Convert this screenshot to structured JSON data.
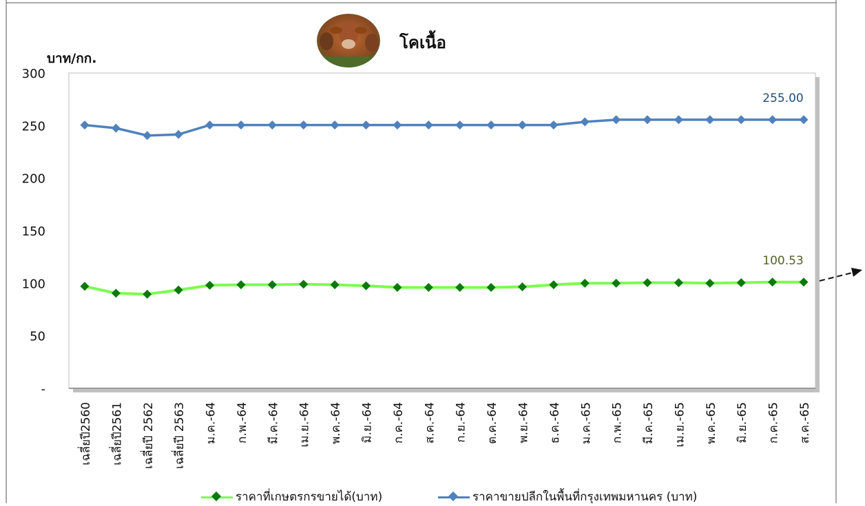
{
  "chart_data": {
    "type": "line",
    "title": "โคเนื้อ",
    "ylabel": "บาท/กก.",
    "ylim": [
      0,
      300
    ],
    "yticks": [
      "-",
      "50",
      "100",
      "150",
      "200",
      "250",
      "300"
    ],
    "categories": [
      "เฉลี่ยปี2560",
      "เฉลี่ยปี2561",
      "เฉลี่ยปี 2562",
      "เฉลี่ยปี 2563",
      "ม.ค.-64",
      "ก.พ.-64",
      "มี.ค.-64",
      "เม.ย.-64",
      "พ.ค.-64",
      "มิ.ย.-64",
      "ก.ค.-64",
      "ส.ค.-64",
      "ก.ย.-64",
      "ต.ค.-64",
      "พ.ย.-64",
      "ธ.ค.-64",
      "ม.ค.-65",
      "ก.พ.-65",
      "มี.ค.-65",
      "เม.ย.-65",
      "พ.ค.-65",
      "มิ.ย.-65",
      "ก.ค.-65",
      "ส.ค.-65"
    ],
    "series": [
      {
        "name": "ราคาที่เกษตรกรขายได้(บาท)",
        "color": "#7CFC50",
        "marker_color": "#0B7A0B",
        "values": [
          97,
          90.5,
          89.5,
          93.5,
          98,
          98.5,
          98.5,
          99,
          98.5,
          97.5,
          96,
          96,
          96,
          96,
          96.5,
          98.5,
          100,
          100,
          100.5,
          100.5,
          100,
          100.5,
          101,
          101
        ],
        "last_label": "100.53"
      },
      {
        "name": "ราคาขายปลีกในพื้นที่กรุงเทพมหานคร (บาท)",
        "color": "#4F81BD",
        "marker_color": "#4F81BD",
        "values": [
          250.5,
          247.5,
          240.5,
          241.5,
          250.5,
          250.5,
          250.5,
          250.5,
          250.5,
          250.5,
          250.5,
          250.5,
          250.5,
          250.5,
          250.5,
          250.5,
          253.5,
          255.5,
          255.5,
          255.5,
          255.5,
          255.5,
          255.5,
          255.5
        ],
        "last_label": "255.00"
      }
    ],
    "grid": false,
    "legend_position": "bottom"
  }
}
